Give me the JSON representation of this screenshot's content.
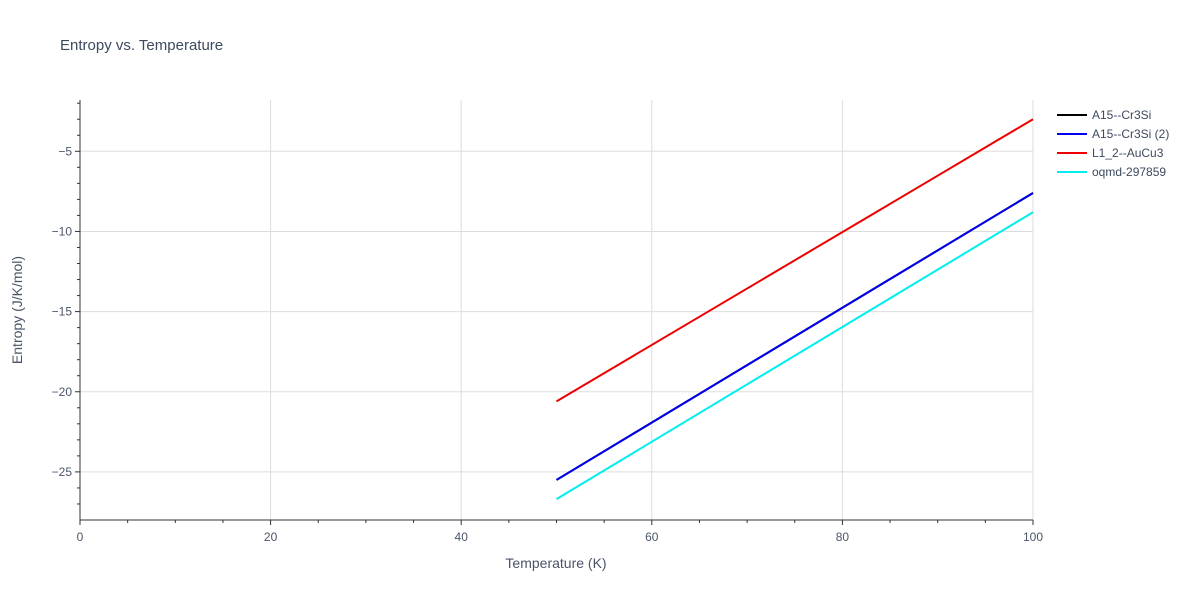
{
  "chart_data": {
    "type": "line",
    "title": "Entropy vs. Temperature",
    "xlabel": "Temperature (K)",
    "ylabel": "Entropy (J/K/mol)",
    "xlim": [
      0,
      100
    ],
    "ylim": [
      -28.0,
      -1.8
    ],
    "x_ticks": [
      0,
      20,
      40,
      60,
      80,
      100
    ],
    "x_tick_labels": [
      "0",
      "20",
      "40",
      "60",
      "80",
      "100"
    ],
    "y_ticks": [
      -25,
      -20,
      -15,
      -10,
      -5
    ],
    "y_tick_labels": [
      "−25",
      "−20",
      "−15",
      "−10",
      "−5"
    ],
    "grid": true,
    "legend_position": "top-right",
    "series": [
      {
        "name": "A15--Cr3Si",
        "color": "#000000",
        "x": [
          50,
          100
        ],
        "y": [
          -25.5,
          -7.6
        ]
      },
      {
        "name": "A15--Cr3Si (2)",
        "color": "#0000ee",
        "x": [
          50,
          100
        ],
        "y": [
          -25.5,
          -7.6
        ]
      },
      {
        "name": "L1_2--AuCu3",
        "color": "#ee0000",
        "x": [
          50,
          100
        ],
        "y": [
          -20.6,
          -3.0
        ]
      },
      {
        "name": "oqmd-297859",
        "color": "#00eeee",
        "x": [
          50,
          100
        ],
        "y": [
          -26.7,
          -8.8
        ]
      }
    ]
  }
}
